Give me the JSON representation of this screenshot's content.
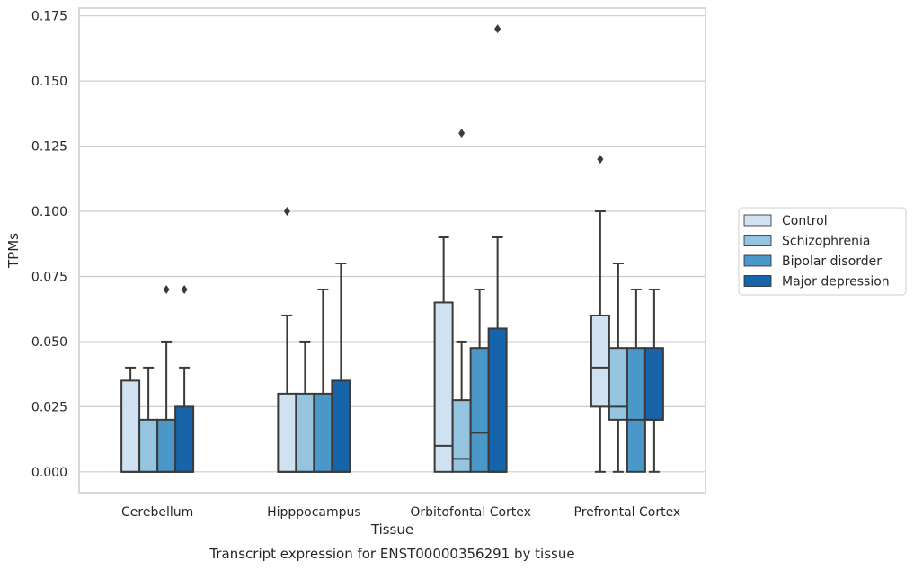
{
  "caption": "Transcript expression for ENST00000356291 by tissue",
  "chart_data": {
    "type": "boxplot",
    "xlabel": "Tissue",
    "ylabel": "TPMs",
    "ylim": [
      -0.008,
      0.178
    ],
    "yticks": [
      0.0,
      0.025,
      0.05,
      0.075,
      0.1,
      0.125,
      0.15,
      0.175
    ],
    "ytick_labels": [
      "0.000",
      "0.025",
      "0.050",
      "0.075",
      "0.100",
      "0.125",
      "0.150",
      "0.175"
    ],
    "grid": "horizontal",
    "legend_placement": "center-right outside",
    "categories": [
      "Cerebellum",
      "Hipppocampus",
      "Orbitofontal Cortex",
      "Prefrontal Cortex"
    ],
    "series": [
      {
        "name": "Control",
        "color": "#d0e1f2",
        "boxes": [
          {
            "whislo": 0.0,
            "q1": 0.0,
            "med": 0.0,
            "q3": 0.035,
            "whishi": 0.04,
            "fliers": []
          },
          {
            "whislo": 0.0,
            "q1": 0.0,
            "med": 0.0,
            "q3": 0.03,
            "whishi": 0.06,
            "fliers": [
              0.1
            ]
          },
          {
            "whislo": 0.0,
            "q1": 0.0,
            "med": 0.01,
            "q3": 0.065,
            "whishi": 0.09,
            "fliers": []
          },
          {
            "whislo": 0.0,
            "q1": 0.025,
            "med": 0.04,
            "q3": 0.06,
            "whishi": 0.1,
            "fliers": [
              0.12
            ]
          }
        ]
      },
      {
        "name": "Schizophrenia",
        "color": "#94c4df",
        "boxes": [
          {
            "whislo": 0.0,
            "q1": 0.0,
            "med": 0.0,
            "q3": 0.02,
            "whishi": 0.04,
            "fliers": []
          },
          {
            "whislo": 0.0,
            "q1": 0.0,
            "med": 0.0,
            "q3": 0.03,
            "whishi": 0.05,
            "fliers": []
          },
          {
            "whislo": 0.0,
            "q1": 0.0,
            "med": 0.005,
            "q3": 0.0275,
            "whishi": 0.05,
            "fliers": [
              0.13
            ]
          },
          {
            "whislo": 0.0,
            "q1": 0.02,
            "med": 0.025,
            "q3": 0.0475,
            "whishi": 0.08,
            "fliers": []
          }
        ]
      },
      {
        "name": "Bipolar disorder",
        "color": "#4a98c9",
        "boxes": [
          {
            "whislo": 0.0,
            "q1": 0.0,
            "med": 0.0,
            "q3": 0.02,
            "whishi": 0.05,
            "fliers": [
              0.07
            ]
          },
          {
            "whislo": 0.0,
            "q1": 0.0,
            "med": 0.0,
            "q3": 0.03,
            "whishi": 0.07,
            "fliers": []
          },
          {
            "whislo": 0.0,
            "q1": 0.0,
            "med": 0.015,
            "q3": 0.0475,
            "whishi": 0.07,
            "fliers": []
          },
          {
            "whislo": 0.0,
            "q1": 0.0,
            "med": 0.02,
            "q3": 0.0475,
            "whishi": 0.07,
            "fliers": []
          }
        ]
      },
      {
        "name": "Major depression",
        "color": "#1764ab",
        "boxes": [
          {
            "whislo": 0.0,
            "q1": 0.0,
            "med": 0.0,
            "q3": 0.025,
            "whishi": 0.04,
            "fliers": [
              0.07
            ]
          },
          {
            "whislo": 0.0,
            "q1": 0.0,
            "med": 0.0,
            "q3": 0.035,
            "whishi": 0.08,
            "fliers": []
          },
          {
            "whislo": 0.0,
            "q1": 0.0,
            "med": 0.0,
            "q3": 0.055,
            "whishi": 0.09,
            "fliers": [
              0.17
            ]
          },
          {
            "whislo": 0.0,
            "q1": 0.02,
            "med": 0.02,
            "q3": 0.0475,
            "whishi": 0.07,
            "fliers": []
          }
        ]
      }
    ]
  }
}
